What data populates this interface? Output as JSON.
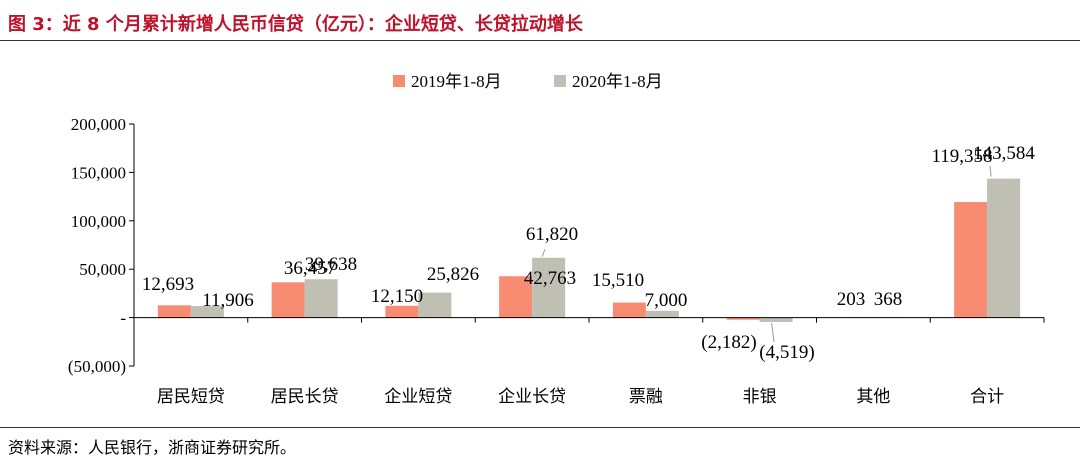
{
  "title": "图 3：近 8 个月累计新增人民币信贷（亿元）：企业短贷、长贷拉动增长",
  "source": "资料来源：人民银行，浙商证券研究所。",
  "chart_data": {
    "type": "bar",
    "categories": [
      "居民短贷",
      "居民长贷",
      "企业短贷",
      "企业长贷",
      "票融",
      "非银",
      "其他",
      "合计"
    ],
    "series": [
      {
        "name": "2019年1-8月",
        "values": [
          12693,
          36457,
          12150,
          42763,
          15510,
          -2182,
          203,
          119358
        ],
        "color": "#f88c72"
      },
      {
        "name": "2020年1-8月",
        "values": [
          11906,
          39638,
          25826,
          61820,
          7000,
          -4519,
          368,
          143584
        ],
        "color": "#bfbfb4"
      }
    ],
    "data_labels": [
      [
        "12,693",
        "36,457",
        "12,150",
        "42,763",
        "15,510",
        "(2,182)",
        "203",
        "119,358"
      ],
      [
        "11,906",
        "39,638",
        "25,826",
        "61,820",
        "7,000",
        "(4,519)",
        "368",
        "143,584"
      ]
    ],
    "ylim": [
      -50000,
      200000
    ],
    "yticks": [
      -50000,
      0,
      50000,
      100000,
      150000,
      200000
    ],
    "ytick_labels": [
      "(50,000)",
      "-",
      "50,000",
      "100,000",
      "150,000",
      "200,000"
    ],
    "legend_position": "top-center",
    "grid": false
  }
}
